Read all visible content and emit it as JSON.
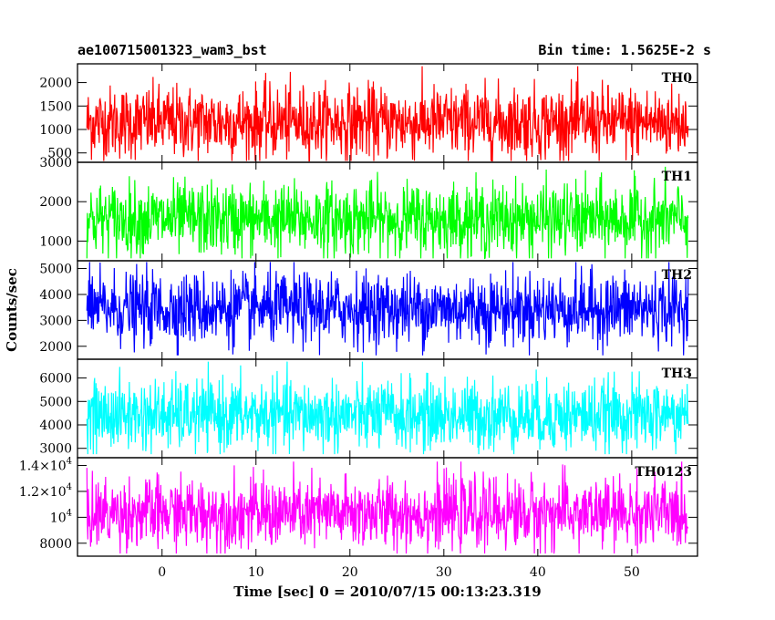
{
  "header": {
    "title": "ae100715001323_wam3_bst",
    "bin_time": "Bin time: 1.5625E-2 s"
  },
  "chart_data": {
    "type": "line",
    "xlabel": "Time [sec] 0 = 2010/07/15 00:13:23.319",
    "ylabel": "Counts/sec",
    "xlim": [
      -9,
      57
    ],
    "x_range_data": [
      -8,
      56
    ],
    "xticks": [
      0,
      10,
      20,
      30,
      40,
      50
    ],
    "xtick_labels": [
      "0",
      "10",
      "20",
      "30",
      "40",
      "50"
    ],
    "grid": false,
    "panels": [
      {
        "name": "TH0",
        "color": "#ff0000",
        "ylim": [
          300,
          2400
        ],
        "yticks": [
          500,
          1000,
          1500,
          2000
        ],
        "ytick_labels": [
          "500",
          "1000",
          "1500",
          "2000"
        ],
        "mean": 1150,
        "low": 330,
        "high": 2350
      },
      {
        "name": "TH1",
        "color": "#00ff00",
        "ylim": [
          500,
          3000
        ],
        "yticks": [
          1000,
          2000,
          3000
        ],
        "ytick_labels": [
          "1000",
          "2000",
          "3000"
        ],
        "mean": 1550,
        "low": 560,
        "high": 2950
      },
      {
        "name": "TH2",
        "color": "#0000ff",
        "ylim": [
          1500,
          5300
        ],
        "yticks": [
          2000,
          3000,
          4000,
          5000
        ],
        "ytick_labels": [
          "2000",
          "3000",
          "4000",
          "5000"
        ],
        "mean": 3450,
        "low": 1650,
        "high": 5250
      },
      {
        "name": "TH3",
        "color": "#00ffff",
        "ylim": [
          2600,
          6800
        ],
        "yticks": [
          3000,
          4000,
          5000,
          6000
        ],
        "ytick_labels": [
          "3000",
          "4000",
          "5000",
          "6000"
        ],
        "mean": 4400,
        "low": 2750,
        "high": 6700
      },
      {
        "name": "TH0123",
        "color": "#ff00ff",
        "ylim": [
          7000,
          14600
        ],
        "yticks": [
          8000,
          10000,
          12000,
          14000
        ],
        "ytick_labels": [
          {
            "base": "8000",
            "exp": ""
          },
          {
            "base": "10",
            "exp": "4"
          },
          {
            "base": "1.2×10",
            "exp": "4"
          },
          {
            "base": "1.4×10",
            "exp": "4"
          }
        ],
        "mean": 10300,
        "low": 7200,
        "high": 14300
      }
    ]
  }
}
